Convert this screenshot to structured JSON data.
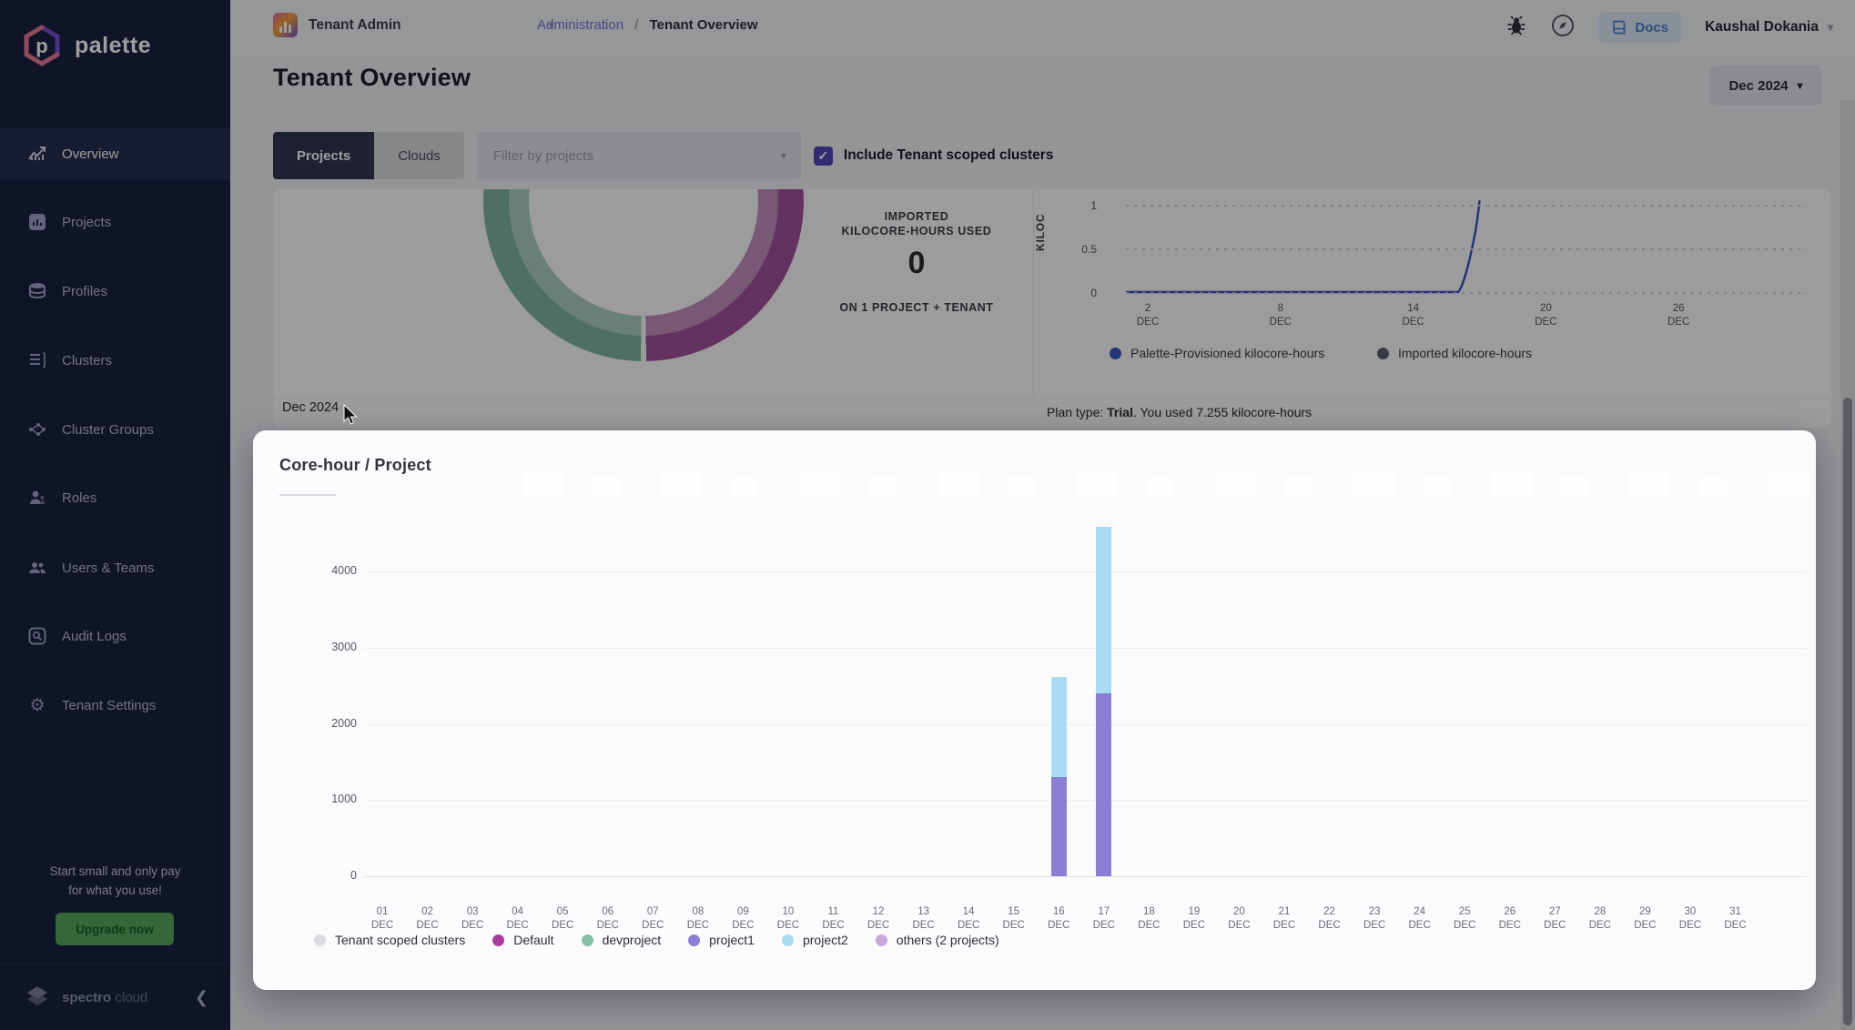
{
  "app": {
    "name": "palette",
    "brand_footer_bold": "spectro",
    "brand_footer_light": "cloud"
  },
  "header": {
    "tenant_selector": "Tenant Admin",
    "breadcrumb_link": "Administration",
    "breadcrumb_sep": "/",
    "breadcrumb_current": "Tenant Overview",
    "docs_label": "Docs",
    "user_name": "Kaushal Dokania"
  },
  "page": {
    "title": "Tenant Overview",
    "period_button": "Dec 2024"
  },
  "toolbar": {
    "tab_projects": "Projects",
    "tab_clouds": "Clouds",
    "filter_placeholder": "Filter by projects",
    "checkbox_label": "Include Tenant scoped clusters",
    "checkbox_checked": true,
    "check_glyph": "✓",
    "accent_color": "#4f46b8"
  },
  "sidebar": {
    "items": [
      {
        "label": "Overview",
        "active": true
      },
      {
        "label": "Projects",
        "active": false
      },
      {
        "label": "Profiles",
        "active": false
      },
      {
        "label": "Clusters",
        "active": false
      },
      {
        "label": "Cluster Groups",
        "active": false
      },
      {
        "label": "Roles",
        "active": false
      },
      {
        "label": "Users & Teams",
        "active": false
      },
      {
        "label": "Audit Logs",
        "active": false
      },
      {
        "label": "Tenant Settings",
        "active": false
      }
    ],
    "promo_line1": "Start small and only pay",
    "promo_line2": "for what you use!",
    "upgrade_label": "Upgrade now",
    "upgrade_color": "#57a75c"
  },
  "usage_card": {
    "period_label": "Dec 2024",
    "plan_prefix": "Plan type: ",
    "plan_bold": "Trial",
    "plan_suffix": ". You used 7.255 kilocore-hours",
    "y_axis_label_visible": "KILOC",
    "legend": [
      {
        "label": "Palette-Provisioned kilocore-hours",
        "color": "#3a57c2"
      },
      {
        "label": "Imported kilocore-hours",
        "color": "#596273"
      }
    ]
  },
  "project_card": {
    "title": "Core-hour / Project"
  },
  "chart_data": [
    {
      "type": "donut",
      "center_line1": "IMPORTED",
      "center_line2": "KILOCORE-HOURS USED",
      "center_value": "0",
      "center_caption": "ON 1 PROJECT + TENANT",
      "clipped_top_value": "7.255",
      "segments": [
        {
          "value": 50,
          "color_outer": "#a2519c",
          "color_inner": "#c38fbe"
        },
        {
          "value": 50,
          "color_outer": "#7fb5a0",
          "color_inner": "#a9cfbf"
        }
      ]
    },
    {
      "type": "line",
      "ylabel": "KILOC",
      "yticks": [
        0,
        0.5,
        1
      ],
      "xticks": [
        {
          "day": "2",
          "month": "DEC"
        },
        {
          "day": "8",
          "month": "DEC"
        },
        {
          "day": "14",
          "month": "DEC"
        },
        {
          "day": "20",
          "month": "DEC"
        },
        {
          "day": "26",
          "month": "DEC"
        }
      ],
      "series": [
        {
          "name": "Palette-Provisioned kilocore-hours",
          "color": "#3450c8",
          "points": [
            {
              "day": 1,
              "value": 0
            },
            {
              "day": 16,
              "value": 0
            },
            {
              "day": 17,
              "value": 1.05
            }
          ]
        },
        {
          "name": "Imported kilocore-hours",
          "color": "#596273",
          "points": [
            {
              "day": 1,
              "value": 0
            },
            {
              "day": 16,
              "value": 0
            }
          ]
        }
      ]
    },
    {
      "type": "bar",
      "stacked": true,
      "title": "Core-hour / Project",
      "month_label": "DEC",
      "categories": [
        "01",
        "02",
        "03",
        "04",
        "05",
        "06",
        "07",
        "08",
        "09",
        "10",
        "11",
        "12",
        "13",
        "14",
        "15",
        "16",
        "17",
        "18",
        "19",
        "20",
        "21",
        "22",
        "23",
        "24",
        "25",
        "26",
        "27",
        "28",
        "29",
        "30",
        "31"
      ],
      "yticks": [
        0,
        1000,
        2000,
        3000,
        4000
      ],
      "ylim": [
        0,
        4000
      ],
      "series": [
        {
          "name": "Tenant scoped clusters",
          "color": "#dcdce2",
          "values": [
            0,
            0,
            0,
            0,
            0,
            0,
            0,
            0,
            0,
            0,
            0,
            0,
            0,
            0,
            0,
            0,
            0,
            0,
            0,
            0,
            0,
            0,
            0,
            0,
            0,
            0,
            0,
            0,
            0,
            0,
            0
          ]
        },
        {
          "name": "Default",
          "color": "#a93d9c",
          "values": [
            0,
            0,
            0,
            0,
            0,
            0,
            0,
            0,
            0,
            0,
            0,
            0,
            0,
            0,
            0,
            0,
            0,
            0,
            0,
            0,
            0,
            0,
            0,
            0,
            0,
            0,
            0,
            0,
            0,
            0,
            0
          ]
        },
        {
          "name": "devproject",
          "color": "#85bfa7",
          "values": [
            0,
            0,
            0,
            0,
            0,
            0,
            0,
            0,
            0,
            0,
            0,
            0,
            0,
            0,
            0,
            0,
            0,
            0,
            0,
            0,
            0,
            0,
            0,
            0,
            0,
            0,
            0,
            0,
            0,
            0,
            0
          ]
        },
        {
          "name": "project1",
          "color": "#8b7fd4",
          "values": [
            0,
            0,
            0,
            0,
            0,
            0,
            0,
            0,
            0,
            0,
            0,
            0,
            0,
            0,
            0,
            1300,
            2400,
            0,
            0,
            0,
            0,
            0,
            0,
            0,
            0,
            0,
            0,
            0,
            0,
            0,
            0
          ]
        },
        {
          "name": "project2",
          "color": "#a9dcf2",
          "values": [
            0,
            0,
            0,
            0,
            0,
            0,
            0,
            0,
            0,
            0,
            0,
            0,
            0,
            0,
            0,
            1320,
            2180,
            0,
            0,
            0,
            0,
            0,
            0,
            0,
            0,
            0,
            0,
            0,
            0,
            0,
            0
          ]
        },
        {
          "name": "others (2 projects)",
          "color": "#c9a8dc",
          "values": [
            0,
            0,
            0,
            0,
            0,
            0,
            0,
            0,
            0,
            0,
            0,
            0,
            0,
            0,
            0,
            0,
            0,
            0,
            0,
            0,
            0,
            0,
            0,
            0,
            0,
            0,
            0,
            0,
            0,
            0,
            0
          ]
        }
      ]
    }
  ]
}
